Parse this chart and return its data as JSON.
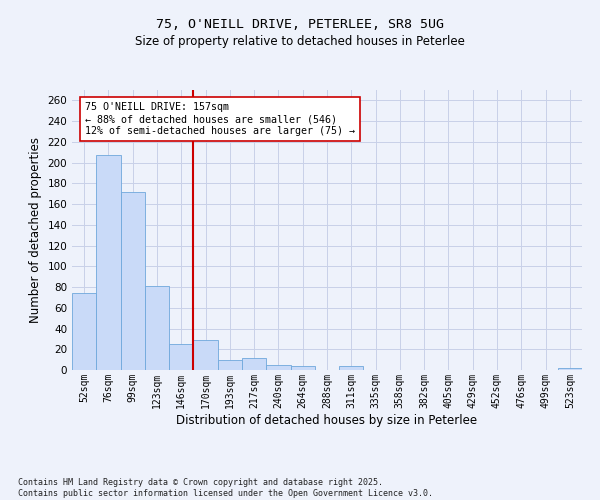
{
  "title1": "75, O'NEILL DRIVE, PETERLEE, SR8 5UG",
  "title2": "Size of property relative to detached houses in Peterlee",
  "xlabel": "Distribution of detached houses by size in Peterlee",
  "ylabel": "Number of detached properties",
  "bar_labels": [
    "52sqm",
    "76sqm",
    "99sqm",
    "123sqm",
    "146sqm",
    "170sqm",
    "193sqm",
    "217sqm",
    "240sqm",
    "264sqm",
    "288sqm",
    "311sqm",
    "335sqm",
    "358sqm",
    "382sqm",
    "405sqm",
    "429sqm",
    "452sqm",
    "476sqm",
    "499sqm",
    "523sqm"
  ],
  "bar_values": [
    74,
    207,
    172,
    81,
    25,
    29,
    10,
    12,
    5,
    4,
    0,
    4,
    0,
    0,
    0,
    0,
    0,
    0,
    0,
    0,
    2
  ],
  "bar_color": "#c9daf8",
  "bar_edgecolor": "#6fa8dc",
  "vline_x": 4.5,
  "vline_color": "#cc0000",
  "annotation_text": "75 O'NEILL DRIVE: 157sqm\n← 88% of detached houses are smaller (546)\n12% of semi-detached houses are larger (75) →",
  "annotation_box_facecolor": "#ffffff",
  "annotation_box_edgecolor": "#cc0000",
  "ylim": [
    0,
    270
  ],
  "yticks": [
    0,
    20,
    40,
    60,
    80,
    100,
    120,
    140,
    160,
    180,
    200,
    220,
    240,
    260
  ],
  "footnote": "Contains HM Land Registry data © Crown copyright and database right 2025.\nContains public sector information licensed under the Open Government Licence v3.0.",
  "background_color": "#eef2fb",
  "grid_color": "#c8d0e8",
  "title1_fontsize": 9.5,
  "title2_fontsize": 8.5
}
